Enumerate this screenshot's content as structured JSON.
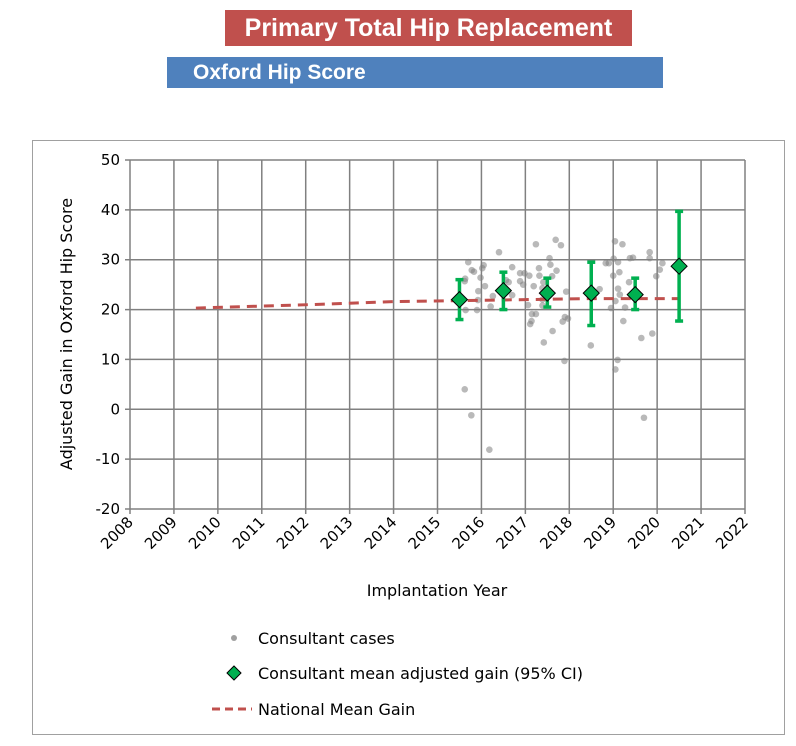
{
  "title": "Primary Total Hip Replacement",
  "subtitle": "Oxford Hip Score",
  "chart_data": {
    "type": "scatter",
    "xlabel": "Implantation Year",
    "ylabel": "Adjusted Gain in Oxford Hip Score",
    "xlim": [
      2008,
      2022
    ],
    "ylim": [
      -20,
      50
    ],
    "xticks": [
      2008,
      2009,
      2010,
      2011,
      2012,
      2013,
      2014,
      2015,
      2016,
      2017,
      2018,
      2019,
      2020,
      2021,
      2022
    ],
    "yticks": [
      -20,
      -10,
      0,
      10,
      20,
      30,
      40,
      50
    ],
    "grid": true,
    "legend_position": "bottom",
    "colors": {
      "cases": "#a0a0a0",
      "mean": "#00b050",
      "national": "#c0504d"
    },
    "series": [
      {
        "name": "Consultant cases",
        "type": "scatter",
        "points": [
          [
            2015.62,
            4.0
          ],
          [
            2015.77,
            -1.2
          ],
          [
            2016.18,
            -8.1
          ],
          [
            2019.7,
            -1.7
          ],
          [
            2015.7,
            29.5
          ],
          [
            2015.78,
            27.9
          ],
          [
            2015.83,
            27.6
          ],
          [
            2016.02,
            28.3
          ],
          [
            2016.05,
            28.9
          ],
          [
            2015.63,
            26.2
          ],
          [
            2015.62,
            25.7
          ],
          [
            2015.98,
            26.4
          ],
          [
            2016.08,
            24.7
          ],
          [
            2015.93,
            23.7
          ],
          [
            2015.92,
            21.9
          ],
          [
            2015.64,
            19.9
          ],
          [
            2015.9,
            19.9
          ],
          [
            2016.21,
            20.6
          ],
          [
            2016.26,
            22.7
          ],
          [
            2016.4,
            31.5
          ],
          [
            2016.7,
            28.5
          ],
          [
            2016.62,
            25.5
          ],
          [
            2016.56,
            25.9
          ],
          [
            2016.7,
            22.9
          ],
          [
            2016.88,
            27.3
          ],
          [
            2016.98,
            27.3
          ],
          [
            2017.09,
            26.8
          ],
          [
            2016.88,
            25.7
          ],
          [
            2016.95,
            25.0
          ],
          [
            2017.06,
            20.9
          ],
          [
            2017.15,
            19.1
          ],
          [
            2017.24,
            19.1
          ],
          [
            2017.11,
            17.1
          ],
          [
            2017.14,
            17.7
          ],
          [
            2017.42,
            13.4
          ],
          [
            2017.19,
            24.7
          ],
          [
            2017.24,
            33.1
          ],
          [
            2017.69,
            34.0
          ],
          [
            2017.81,
            32.9
          ],
          [
            2017.55,
            30.3
          ],
          [
            2017.57,
            29.0
          ],
          [
            2017.31,
            28.3
          ],
          [
            2017.32,
            26.8
          ],
          [
            2017.71,
            27.8
          ],
          [
            2017.61,
            26.7
          ],
          [
            2017.41,
            25.5
          ],
          [
            2017.39,
            24.3
          ],
          [
            2017.39,
            22.0
          ],
          [
            2017.39,
            20.8
          ],
          [
            2017.93,
            23.6
          ],
          [
            2017.9,
            18.5
          ],
          [
            2017.97,
            18.2
          ],
          [
            2017.85,
            17.6
          ],
          [
            2017.62,
            15.7
          ],
          [
            2017.89,
            9.7
          ],
          [
            2018.49,
            12.8
          ],
          [
            2018.69,
            24.1
          ],
          [
            2018.83,
            29.3
          ],
          [
            2018.9,
            29.3
          ],
          [
            2019.01,
            30.2
          ],
          [
            2019.04,
            33.7
          ],
          [
            2019.21,
            33.1
          ],
          [
            2019.11,
            29.5
          ],
          [
            2019.14,
            27.5
          ],
          [
            2019.0,
            26.8
          ],
          [
            2019.11,
            24.2
          ],
          [
            2019.15,
            23.0
          ],
          [
            2019.05,
            21.7
          ],
          [
            2018.95,
            20.3
          ],
          [
            2019.27,
            20.4
          ],
          [
            2019.36,
            25.5
          ],
          [
            2019.38,
            30.3
          ],
          [
            2019.45,
            30.4
          ],
          [
            2019.23,
            17.7
          ],
          [
            2019.64,
            14.3
          ],
          [
            2019.1,
            9.9
          ],
          [
            2019.05,
            8.0
          ],
          [
            2019.83,
            31.5
          ],
          [
            2019.83,
            30.3
          ],
          [
            2020.12,
            29.3
          ],
          [
            2020.06,
            28.0
          ],
          [
            2019.98,
            26.7
          ],
          [
            2019.89,
            15.2
          ]
        ]
      },
      {
        "name": "Consultant mean adjusted gain (95% CI)",
        "type": "errorbar",
        "points": [
          {
            "x": 2015.5,
            "y": 22.0,
            "lo": 18.0,
            "hi": 26.0
          },
          {
            "x": 2016.5,
            "y": 23.8,
            "lo": 20.0,
            "hi": 27.5
          },
          {
            "x": 2017.5,
            "y": 23.3,
            "lo": 20.5,
            "hi": 26.3
          },
          {
            "x": 2018.5,
            "y": 23.3,
            "lo": 16.8,
            "hi": 29.5
          },
          {
            "x": 2019.5,
            "y": 23.0,
            "lo": 20.0,
            "hi": 26.3
          },
          {
            "x": 2020.5,
            "y": 28.7,
            "lo": 17.7,
            "hi": 39.7
          }
        ]
      },
      {
        "name": "National Mean Gain",
        "type": "line",
        "points": [
          [
            2009.5,
            20.3
          ],
          [
            2011,
            20.7
          ],
          [
            2012.5,
            21.1
          ],
          [
            2014,
            21.6
          ],
          [
            2015.5,
            21.8
          ],
          [
            2017,
            22.0
          ],
          [
            2018.5,
            22.2
          ],
          [
            2020.5,
            22.2
          ]
        ]
      }
    ]
  }
}
